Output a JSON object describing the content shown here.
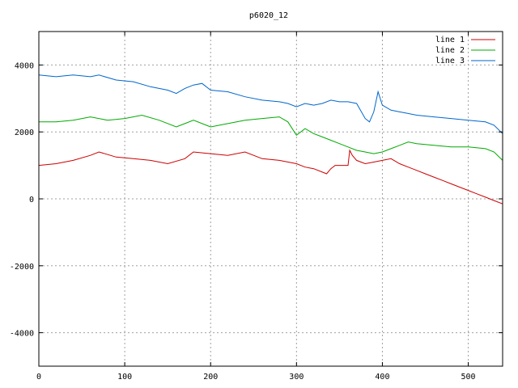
{
  "chart_data": {
    "type": "line",
    "title": "p6020_12",
    "xlabel": "",
    "ylabel": "",
    "xlim": [
      0,
      540
    ],
    "ylim": [
      -5000,
      5000
    ],
    "xticks": [
      0,
      100,
      200,
      300,
      400,
      500
    ],
    "yticks": [
      -4000,
      -2000,
      0,
      2000,
      4000
    ],
    "grid": true,
    "legend_position": "top-right",
    "series": [
      {
        "name": "line 1",
        "color": "#cc0000",
        "x": [
          0,
          20,
          40,
          60,
          70,
          90,
          110,
          130,
          150,
          170,
          180,
          200,
          220,
          240,
          260,
          280,
          300,
          310,
          320,
          330,
          335,
          340,
          345,
          360,
          362,
          365,
          370,
          380,
          390,
          400,
          410,
          420,
          430,
          440,
          450,
          460,
          470,
          480,
          490,
          500,
          510,
          520,
          530,
          540
        ],
        "values": [
          1000,
          1050,
          1150,
          1300,
          1400,
          1250,
          1200,
          1150,
          1050,
          1200,
          1400,
          1350,
          1300,
          1400,
          1200,
          1150,
          1050,
          950,
          900,
          800,
          750,
          900,
          1000,
          1000,
          1450,
          1300,
          1150,
          1050,
          1100,
          1150,
          1200,
          1050,
          950,
          850,
          750,
          650,
          550,
          450,
          350,
          250,
          150,
          50,
          -50,
          -150
        ]
      },
      {
        "name": "line 2",
        "color": "#00aa00",
        "x": [
          0,
          20,
          40,
          60,
          80,
          100,
          120,
          140,
          160,
          170,
          180,
          200,
          220,
          240,
          260,
          280,
          290,
          300,
          310,
          320,
          330,
          340,
          350,
          360,
          370,
          380,
          390,
          400,
          410,
          420,
          430,
          440,
          460,
          480,
          500,
          520,
          530,
          540
        ],
        "values": [
          2300,
          2300,
          2350,
          2450,
          2350,
          2400,
          2500,
          2350,
          2150,
          2250,
          2350,
          2150,
          2250,
          2350,
          2400,
          2450,
          2300,
          1900,
          2100,
          1950,
          1850,
          1750,
          1650,
          1550,
          1450,
          1400,
          1350,
          1400,
          1500,
          1600,
          1700,
          1650,
          1600,
          1550,
          1550,
          1500,
          1400,
          1150
        ]
      },
      {
        "name": "line 3",
        "color": "#0066cc",
        "x": [
          0,
          20,
          40,
          60,
          70,
          90,
          110,
          130,
          150,
          160,
          170,
          180,
          190,
          200,
          220,
          240,
          260,
          280,
          290,
          300,
          310,
          320,
          330,
          340,
          350,
          360,
          370,
          380,
          385,
          390,
          395,
          400,
          410,
          420,
          430,
          440,
          460,
          480,
          500,
          520,
          530,
          540
        ],
        "values": [
          3700,
          3650,
          3700,
          3650,
          3700,
          3550,
          3500,
          3350,
          3250,
          3150,
          3300,
          3400,
          3450,
          3250,
          3200,
          3050,
          2950,
          2900,
          2850,
          2750,
          2850,
          2800,
          2850,
          2950,
          2900,
          2900,
          2850,
          2400,
          2300,
          2600,
          3200,
          2800,
          2650,
          2600,
          2550,
          2500,
          2450,
          2400,
          2350,
          2300,
          2200,
          1950
        ]
      }
    ]
  }
}
